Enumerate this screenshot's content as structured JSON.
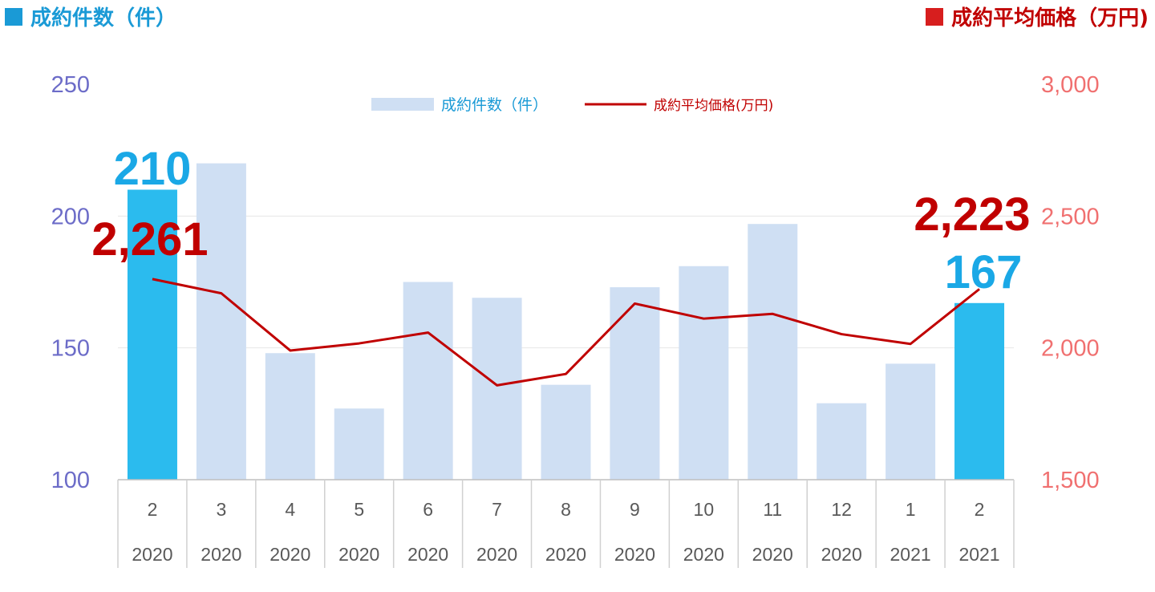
{
  "header": {
    "left_title": "成約件数（件）",
    "right_title": "成約平均価格（万円)",
    "left_color": "#1a9ad6",
    "right_color": "#d71e1e"
  },
  "chart_data": {
    "type": "bar+line",
    "categories": [
      {
        "month": "2",
        "year": "2020"
      },
      {
        "month": "3",
        "year": "2020"
      },
      {
        "month": "4",
        "year": "2020"
      },
      {
        "month": "5",
        "year": "2020"
      },
      {
        "month": "6",
        "year": "2020"
      },
      {
        "month": "7",
        "year": "2020"
      },
      {
        "month": "8",
        "year": "2020"
      },
      {
        "month": "9",
        "year": "2020"
      },
      {
        "month": "10",
        "year": "2020"
      },
      {
        "month": "11",
        "year": "2020"
      },
      {
        "month": "12",
        "year": "2020"
      },
      {
        "month": "1",
        "year": "2021"
      },
      {
        "month": "2",
        "year": "2021"
      }
    ],
    "series": [
      {
        "name": "成約件数（件）",
        "type": "bar",
        "axis": "left",
        "color": "#cfdff3",
        "highlight_color": "#2bbbee",
        "highlight_indices": [
          0,
          12
        ],
        "values": [
          210,
          220,
          148,
          127,
          175,
          169,
          136,
          173,
          181,
          197,
          129,
          144,
          167
        ]
      },
      {
        "name": "成約平均価格(万円)",
        "type": "line",
        "axis": "right",
        "color": "#c00000",
        "values": [
          2261,
          2207,
          1990,
          2017,
          2058,
          1858,
          1901,
          2168,
          2111,
          2129,
          2052,
          2015,
          2223
        ]
      }
    ],
    "left_axis": {
      "min": 100,
      "max": 250,
      "ticks": [
        "250",
        "200",
        "150",
        "100"
      ],
      "color": "#6c6cc8"
    },
    "right_axis": {
      "min": 1500,
      "max": 3000,
      "ticks": [
        "3,000",
        "2,500",
        "2,000",
        "1,500"
      ],
      "color": "#f07070"
    },
    "annotations": [
      {
        "text": "210",
        "series": 0,
        "index": 0,
        "color": "#1aa8e6"
      },
      {
        "text": "2,261",
        "series": 1,
        "index": 0,
        "color": "#c00000"
      },
      {
        "text": "2,223",
        "series": 1,
        "index": 12,
        "color": "#c00000"
      },
      {
        "text": "167",
        "series": 0,
        "index": 12,
        "color": "#1aa8e6"
      }
    ],
    "legend_position": "top-center",
    "grid": true
  }
}
